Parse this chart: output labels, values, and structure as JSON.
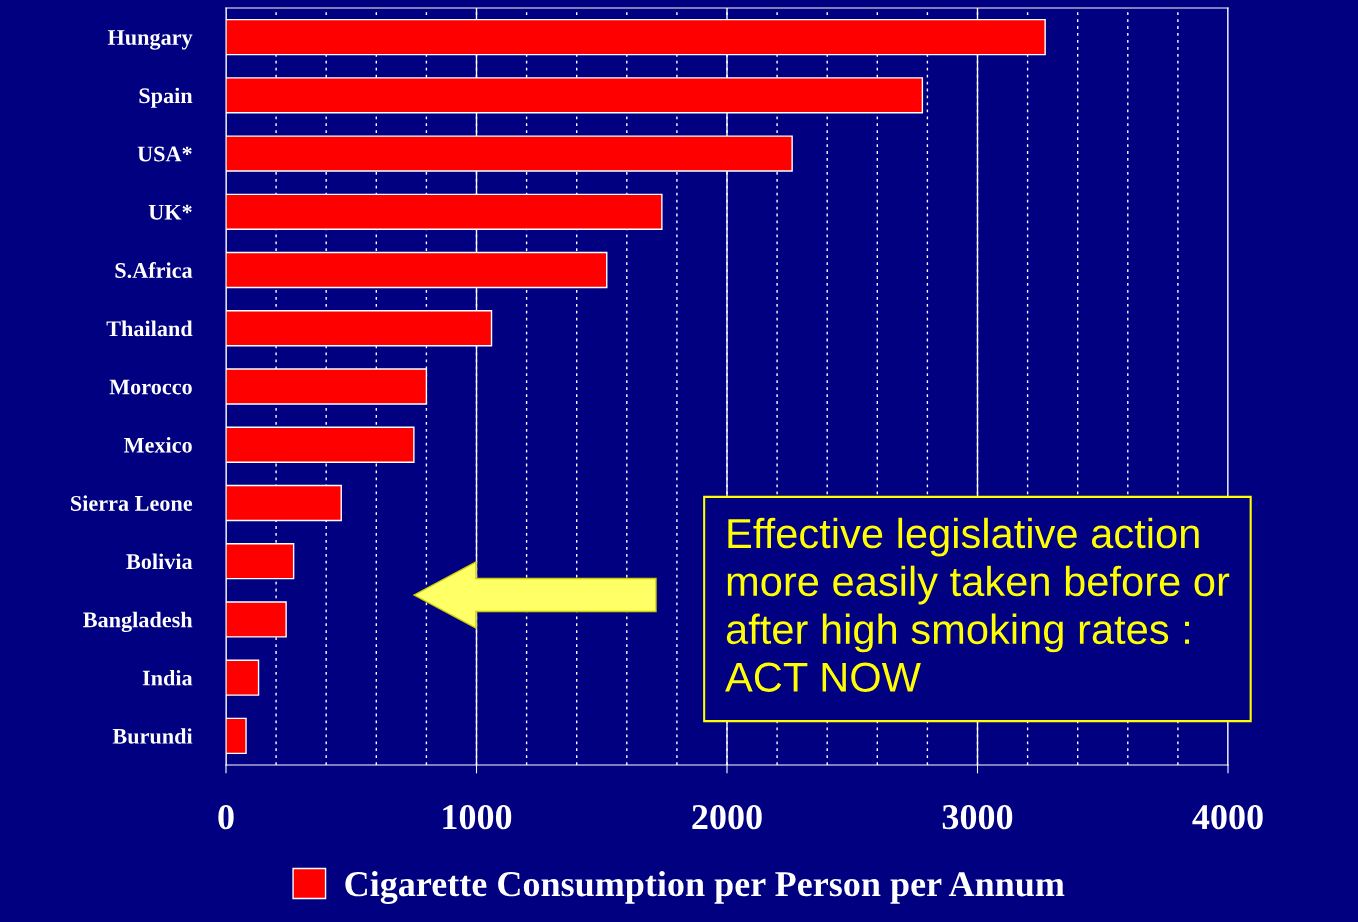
{
  "chart_data": {
    "type": "bar",
    "orientation": "horizontal",
    "categories": [
      "Hungary",
      "Spain",
      "USA*",
      "UK*",
      "S.Africa",
      "Thailand",
      "Morocco",
      "Mexico",
      "Sierra Leone",
      "Bolivia",
      "Bangladesh",
      "India",
      "Burundi"
    ],
    "series": [
      {
        "name": "Cigarette Consumption per Person per Annum",
        "color": "#ff0000",
        "values": [
          3270,
          2780,
          2260,
          1740,
          1520,
          1060,
          800,
          750,
          460,
          270,
          240,
          130,
          80
        ]
      }
    ],
    "xlim": [
      0,
      4000
    ],
    "xticks": [
      0,
      1000,
      2000,
      3000,
      4000
    ],
    "grid": "x",
    "legend": "bottom",
    "annotations": [
      "Effective legislative action\nmore easily taken before or\nafter high smoking rates :\nACT NOW"
    ]
  }
}
